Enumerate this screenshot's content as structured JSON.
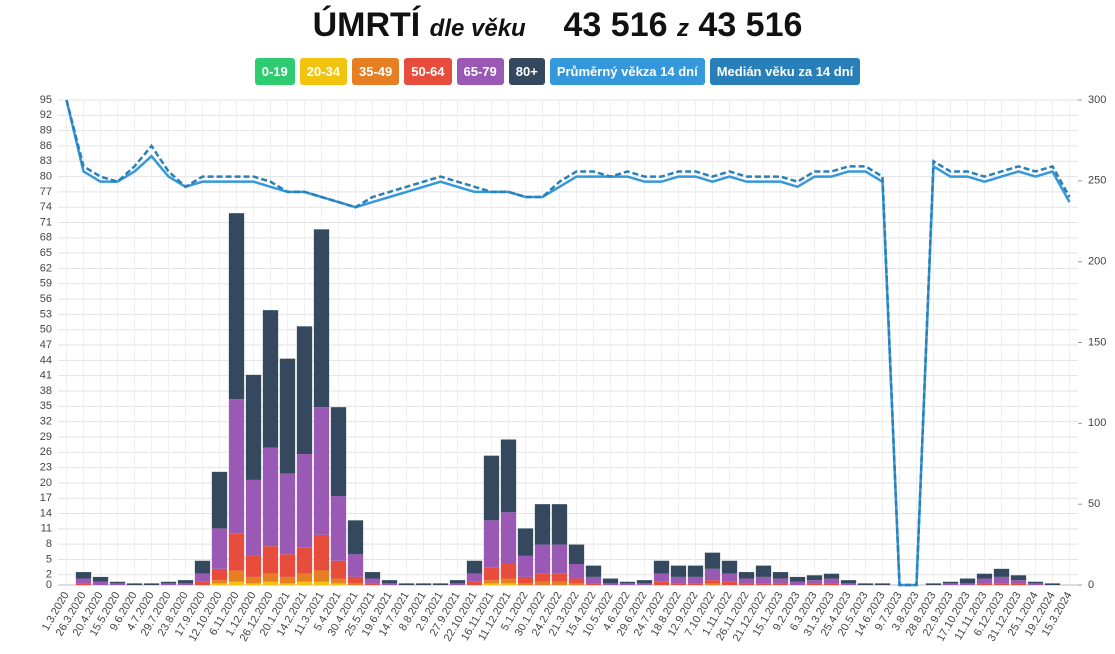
{
  "chart_data": {
    "type": "stacked-bar-line",
    "title_parts": [
      "ÚMRTÍ",
      "dle věku",
      "43 516",
      "z",
      "43 516"
    ],
    "categories": [
      "1.3.2020",
      "26.3.2020",
      "20.4.2020",
      "15.5.2020",
      "9.6.2020",
      "4.7.2020",
      "29.7.2020",
      "23.8.2020",
      "17.9.2020",
      "12.10.2020",
      "6.11.2020",
      "1.12.2020",
      "26.12.2020",
      "20.1.2021",
      "14.2.2021",
      "11.3.2021",
      "5.4.2021",
      "30.4.2021",
      "25.5.2021",
      "19.6.2021",
      "14.7.2021",
      "8.8.2021",
      "2.9.2021",
      "27.9.2021",
      "22.10.2021",
      "16.11.2021",
      "11.12.2021",
      "5.1.2022",
      "30.1.2022",
      "24.2.2022",
      "21.3.2022",
      "15.4.2022",
      "10.5.2022",
      "4.6.2022",
      "29.6.2022",
      "24.7.2022",
      "18.8.2022",
      "12.9.2022",
      "7.10.2022",
      "1.11.2022",
      "26.11.2022",
      "21.12.2022",
      "15.1.2023",
      "9.2.2023",
      "6.3.2023",
      "31.3.2023",
      "25.4.2023",
      "20.5.2023",
      "14.6.2023",
      "9.7.2023",
      "3.8.2023",
      "28.8.2023",
      "22.9.2023",
      "17.10.2023",
      "11.11.2023",
      "6.12.2023",
      "31.12.2023",
      "25.1.2024",
      "19.2.2024",
      "15.3.2024"
    ],
    "series": [
      {
        "name": "0-19",
        "color": "#2ecc71",
        "axis": "y2",
        "kind": "bar",
        "values": [
          0,
          0,
          0,
          0,
          0,
          0,
          0,
          0,
          0,
          0,
          0,
          0,
          0,
          0,
          0,
          0,
          0,
          0,
          0,
          0,
          0,
          0,
          0,
          0,
          0,
          0,
          0,
          0,
          0,
          0,
          0,
          0,
          0,
          0,
          0,
          0,
          0,
          0,
          0,
          0,
          0,
          0,
          0,
          0,
          0,
          0,
          0,
          0,
          0,
          0,
          0,
          0,
          0,
          0,
          0,
          0,
          0,
          0,
          0,
          0
        ]
      },
      {
        "name": "20-34",
        "color": "#f1c40f",
        "axis": "y2",
        "kind": "bar",
        "values": [
          0,
          0,
          0,
          0,
          0,
          0,
          0,
          0,
          0,
          1,
          2,
          1,
          2,
          1,
          2,
          2,
          1,
          0,
          0,
          0,
          0,
          0,
          0,
          0,
          0,
          1,
          1,
          0,
          0,
          0,
          0,
          0,
          0,
          0,
          0,
          0,
          0,
          0,
          0,
          0,
          0,
          0,
          0,
          0,
          0,
          0,
          0,
          0,
          0,
          0,
          0,
          0,
          0,
          0,
          0,
          0,
          0,
          0,
          0,
          0
        ]
      },
      {
        "name": "35-49",
        "color": "#e67e22",
        "axis": "y2",
        "kind": "bar",
        "values": [
          0,
          0,
          0,
          0,
          0,
          0,
          0,
          0,
          0,
          2,
          7,
          4,
          5,
          4,
          5,
          7,
          3,
          1,
          0,
          0,
          0,
          0,
          0,
          0,
          0,
          2,
          3,
          1,
          2,
          2,
          1,
          0,
          0,
          0,
          0,
          0,
          0,
          0,
          1,
          0,
          0,
          0,
          0,
          0,
          0,
          0,
          0,
          0,
          0,
          0,
          0,
          0,
          0,
          0,
          0,
          0,
          0,
          0,
          0,
          0
        ]
      },
      {
        "name": "50-64",
        "color": "#e74c3c",
        "axis": "y2",
        "kind": "bar",
        "values": [
          0,
          1,
          0,
          0,
          0,
          0,
          0,
          0,
          2,
          7,
          23,
          13,
          17,
          14,
          16,
          22,
          11,
          4,
          1,
          0,
          0,
          0,
          0,
          0,
          2,
          8,
          9,
          4,
          5,
          5,
          3,
          1,
          0,
          0,
          0,
          2,
          1,
          1,
          2,
          2,
          1,
          1,
          1,
          0,
          1,
          1,
          0,
          0,
          0,
          0,
          0,
          0,
          0,
          0,
          1,
          1,
          1,
          0,
          0,
          0
        ]
      },
      {
        "name": "65-79",
        "color": "#9b59b6",
        "axis": "y2",
        "kind": "bar",
        "values": [
          0,
          3,
          2,
          1,
          0,
          0,
          1,
          1,
          5,
          25,
          83,
          47,
          61,
          50,
          58,
          79,
          40,
          14,
          3,
          1,
          0,
          0,
          0,
          1,
          5,
          29,
          32,
          13,
          18,
          18,
          9,
          4,
          1,
          1,
          1,
          5,
          4,
          4,
          7,
          5,
          3,
          4,
          3,
          2,
          2,
          3,
          1,
          0,
          0,
          0,
          0,
          0,
          1,
          1,
          3,
          4,
          2,
          1,
          0,
          0
        ]
      },
      {
        "name": "80+",
        "color": "#34495e",
        "axis": "y2",
        "kind": "bar",
        "values": [
          0,
          4,
          3,
          1,
          1,
          1,
          1,
          2,
          8,
          35,
          115,
          65,
          85,
          71,
          79,
          110,
          55,
          21,
          4,
          2,
          1,
          1,
          1,
          2,
          8,
          40,
          45,
          17,
          25,
          25,
          12,
          7,
          3,
          1,
          2,
          8,
          7,
          7,
          10,
          8,
          4,
          7,
          4,
          3,
          3,
          3,
          2,
          1,
          1,
          0,
          0,
          1,
          1,
          3,
          3,
          5,
          3,
          1,
          1,
          0
        ]
      },
      {
        "name": "Průměrný věkza 14 dní",
        "color": "#3498db",
        "axis": "y",
        "kind": "line",
        "values": [
          95,
          81,
          79,
          79,
          81,
          84,
          80,
          78,
          79,
          79,
          79,
          79,
          78,
          77,
          77,
          76,
          75,
          74,
          75,
          76,
          77,
          78,
          79,
          78,
          77,
          77,
          77,
          76,
          76,
          78,
          80,
          80,
          80,
          80,
          79,
          79,
          80,
          80,
          79,
          80,
          79,
          79,
          79,
          78,
          80,
          80,
          81,
          81,
          79,
          0,
          0,
          82,
          80,
          80,
          79,
          80,
          81,
          80,
          81,
          75
        ]
      },
      {
        "name": "Medián věku za 14 dní",
        "color": "#2980b9",
        "axis": "y",
        "kind": "line",
        "dashed": true,
        "values": [
          95,
          82,
          80,
          79,
          82,
          86,
          81,
          78,
          80,
          80,
          80,
          80,
          79,
          77,
          77,
          76,
          75,
          74,
          76,
          77,
          78,
          79,
          80,
          79,
          78,
          77,
          77,
          76,
          76,
          79,
          81,
          81,
          80,
          81,
          80,
          80,
          81,
          81,
          80,
          81,
          80,
          80,
          80,
          79,
          81,
          81,
          82,
          82,
          80,
          0,
          0,
          83,
          81,
          81,
          80,
          81,
          82,
          81,
          82,
          76
        ]
      }
    ],
    "ylim": [
      0,
      95
    ],
    "yticks": [
      0,
      2,
      5,
      8,
      11,
      14,
      17,
      20,
      23,
      26,
      29,
      32,
      35,
      38,
      41,
      44,
      47,
      50,
      53,
      56,
      59,
      62,
      65,
      68,
      71,
      74,
      77,
      80,
      83,
      86,
      89,
      92,
      95
    ],
    "y2lim": [
      0,
      300
    ],
    "y2ticks": [
      0,
      50,
      100,
      150,
      200,
      250,
      300
    ],
    "grid": true
  }
}
